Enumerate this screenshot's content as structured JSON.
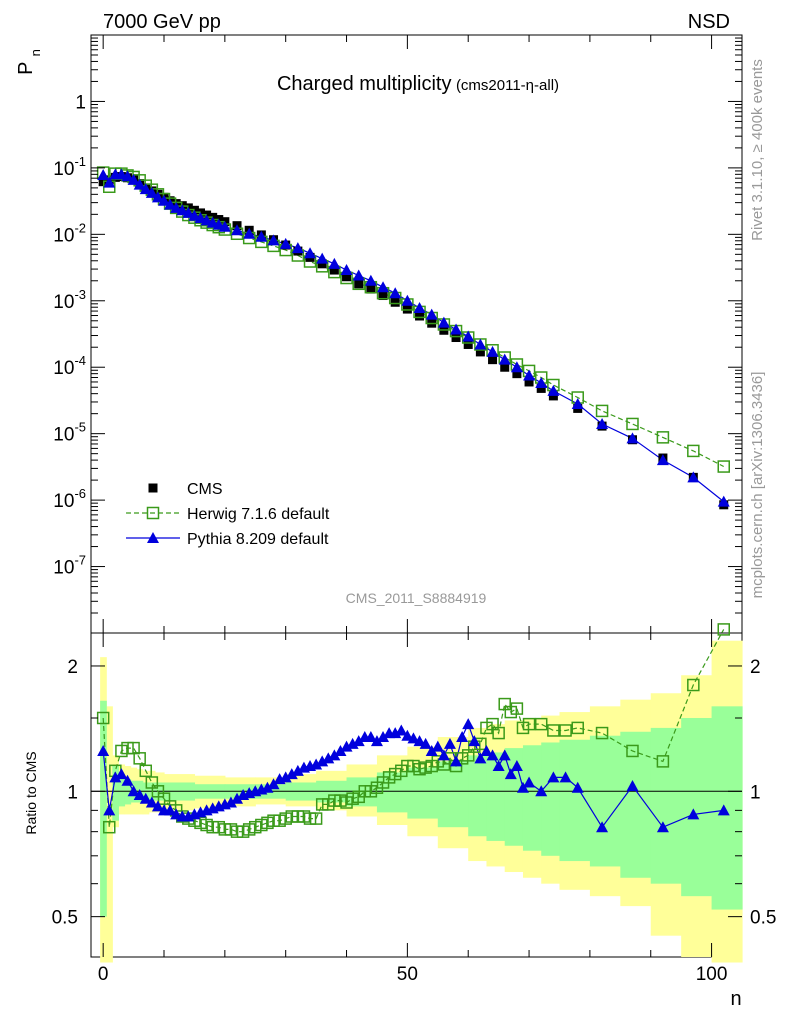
{
  "header": {
    "energy_label": "7000 GeV pp",
    "process_label": "NSD",
    "plot_title": "Charged multiplicity",
    "plot_subtitle": "(cms2011-η-all)",
    "analysis_id": "CMS_2011_S8884919",
    "side_label_top": "Rivet 3.1.10, ≥ 400k events",
    "side_label_bottom": "mcplots.cern.ch [arXiv:1306.3436]"
  },
  "colors": {
    "data": "#000000",
    "herwig": "#3a9a1a",
    "pythia": "#0000dd",
    "band_inner": "#99ff99",
    "band_outer": "#ffff99"
  },
  "chart_data": [
    {
      "type": "scatter",
      "name": "main",
      "ylabel": "P",
      "ylabel_sub": "n",
      "yscale": "log",
      "xlim": [
        -2,
        105
      ],
      "ylim": [
        1e-08,
        10
      ],
      "y_ticks": [
        {
          "value": 1e-07,
          "base": "10",
          "exp": "-7"
        },
        {
          "value": 1e-06,
          "base": "10",
          "exp": "-6"
        },
        {
          "value": 1e-05,
          "base": "10",
          "exp": "-5"
        },
        {
          "value": 0.0001,
          "base": "10",
          "exp": "-4"
        },
        {
          "value": 0.001,
          "base": "10",
          "exp": "-3"
        },
        {
          "value": 0.01,
          "base": "10",
          "exp": "-2"
        },
        {
          "value": 0.1,
          "base": "10",
          "exp": "-1"
        },
        {
          "value": 1,
          "base": "1",
          "exp": ""
        }
      ],
      "legend_position": "bottom-left",
      "series": [
        {
          "name": "CMS",
          "marker": "filled-square",
          "x": [
            0,
            1,
            2,
            3,
            4,
            5,
            6,
            7,
            8,
            9,
            10,
            11,
            12,
            13,
            14,
            15,
            16,
            17,
            18,
            19,
            20,
            22,
            24,
            26,
            28,
            30,
            32,
            34,
            36,
            38,
            40,
            42,
            44,
            46,
            48,
            50,
            52,
            54,
            56,
            58,
            60,
            62,
            64,
            66,
            68,
            70,
            72,
            74,
            78,
            82,
            87,
            92,
            97,
            102
          ],
          "y": [
            0.062,
            0.066,
            0.072,
            0.074,
            0.071,
            0.066,
            0.058,
            0.05,
            0.045,
            0.04,
            0.036,
            0.032,
            0.029,
            0.027,
            0.025,
            0.023,
            0.021,
            0.0195,
            0.018,
            0.0167,
            0.0155,
            0.0135,
            0.0115,
            0.0098,
            0.0083,
            0.0069,
            0.0056,
            0.0045,
            0.0036,
            0.0029,
            0.0023,
            0.0018,
            0.0015,
            0.0012,
            0.00095,
            0.00075,
            0.00059,
            0.00046,
            0.00036,
            0.00028,
            0.00022,
            0.00017,
            0.00013,
            0.0001,
            8e-05,
            6e-05,
            4.8e-05,
            3.7e-05,
            2.4e-05,
            1.3e-05,
            8.1e-06,
            4.3e-06,
            2.2e-06,
            8.5e-07
          ]
        },
        {
          "name": "Herwig 7.1.6 default",
          "marker": "open-square",
          "line": "dashed",
          "x": [
            0,
            1,
            2,
            3,
            4,
            5,
            6,
            7,
            8,
            9,
            10,
            11,
            12,
            13,
            14,
            15,
            16,
            17,
            18,
            19,
            20,
            22,
            24,
            26,
            28,
            30,
            32,
            34,
            36,
            38,
            40,
            42,
            44,
            46,
            48,
            50,
            52,
            54,
            56,
            58,
            60,
            62,
            64,
            66,
            68,
            70,
            72,
            74,
            78,
            82,
            87,
            92,
            97,
            102
          ],
          "y": [
            0.085,
            0.052,
            0.082,
            0.082,
            0.077,
            0.073,
            0.065,
            0.054,
            0.047,
            0.04,
            0.034,
            0.029,
            0.025,
            0.022,
            0.0195,
            0.0178,
            0.0163,
            0.015,
            0.0138,
            0.0128,
            0.0118,
            0.0102,
            0.0088,
            0.0077,
            0.0067,
            0.0058,
            0.0048,
            0.0039,
            0.0033,
            0.0027,
            0.0022,
            0.0018,
            0.0016,
            0.0013,
            0.0011,
            0.00088,
            0.00068,
            0.00055,
            0.00044,
            0.00035,
            0.00028,
            0.00022,
            0.00018,
            0.00014,
            0.00011,
            8.8e-05,
            7e-05,
            5.4e-05,
            3.5e-05,
            2.2e-05,
            1.4e-05,
            8.8e-06,
            5.5e-06,
            3.2e-06
          ]
        },
        {
          "name": "Pythia 8.209 default",
          "marker": "filled-triangle",
          "line": "solid",
          "x": [
            0,
            1,
            2,
            3,
            4,
            5,
            6,
            7,
            8,
            9,
            10,
            11,
            12,
            13,
            14,
            15,
            16,
            17,
            18,
            19,
            20,
            22,
            24,
            26,
            28,
            30,
            32,
            34,
            36,
            38,
            40,
            42,
            44,
            46,
            48,
            50,
            52,
            54,
            56,
            58,
            60,
            62,
            64,
            66,
            68,
            70,
            72,
            74,
            78,
            82,
            87,
            92,
            97,
            102
          ],
          "y": [
            0.078,
            0.06,
            0.08,
            0.08,
            0.075,
            0.066,
            0.056,
            0.048,
            0.042,
            0.036,
            0.032,
            0.028,
            0.025,
            0.023,
            0.021,
            0.019,
            0.0175,
            0.0162,
            0.015,
            0.014,
            0.013,
            0.0115,
            0.0102,
            0.0092,
            0.0081,
            0.0072,
            0.0062,
            0.0052,
            0.0043,
            0.0036,
            0.0029,
            0.0024,
            0.002,
            0.0016,
            0.0013,
            0.001,
            0.00078,
            0.00062,
            0.00047,
            0.00037,
            0.00029,
            0.00022,
            0.00017,
            0.00013,
            0.0001,
            7.5e-05,
            5.8e-05,
            4.4e-05,
            2.8e-05,
            1.4e-05,
            8.5e-06,
            4e-06,
            2.2e-06,
            9.5e-07
          ]
        }
      ]
    },
    {
      "type": "scatter",
      "name": "ratio",
      "ylabel": "Ratio to CMS",
      "xlabel": "n",
      "yscale": "log",
      "xlim": [
        -2,
        105
      ],
      "ylim": [
        0.4,
        2.4
      ],
      "x_ticks": [
        0,
        50,
        100
      ],
      "y_ticks": [
        {
          "value": 0.5,
          "label": "0.5"
        },
        {
          "value": 1,
          "label": "1"
        },
        {
          "value": 2,
          "label": "2"
        }
      ],
      "bands": {
        "x_edges": [
          -0.5,
          0.5,
          1.5,
          2.5,
          3.5,
          4.5,
          5.5,
          6.5,
          7.5,
          8.5,
          10,
          15,
          20,
          25,
          30,
          35,
          40,
          45,
          50,
          55,
          60,
          63,
          66,
          69,
          72,
          75,
          80,
          85,
          90,
          95,
          100,
          105
        ],
        "inner_low": [
          0.5,
          1.3,
          0.85,
          0.92,
          0.93,
          0.94,
          0.94,
          0.95,
          0.95,
          0.95,
          0.95,
          0.96,
          0.96,
          0.96,
          0.95,
          0.94,
          0.92,
          0.89,
          0.86,
          0.82,
          0.78,
          0.76,
          0.74,
          0.72,
          0.7,
          0.68,
          0.66,
          0.62,
          0.6,
          0.56,
          0.52
        ],
        "inner_high": [
          1.65,
          1.3,
          1.15,
          1.08,
          1.07,
          1.06,
          1.06,
          1.05,
          1.05,
          1.05,
          1.05,
          1.04,
          1.04,
          1.04,
          1.05,
          1.06,
          1.08,
          1.11,
          1.14,
          1.18,
          1.22,
          1.24,
          1.27,
          1.29,
          1.31,
          1.33,
          1.36,
          1.39,
          1.42,
          1.5,
          1.6
        ],
        "outer_low": [
          0.3,
          0.3,
          0.82,
          0.88,
          0.88,
          0.88,
          0.88,
          0.88,
          0.89,
          0.89,
          0.9,
          0.91,
          0.92,
          0.93,
          0.92,
          0.9,
          0.87,
          0.83,
          0.78,
          0.73,
          0.68,
          0.66,
          0.64,
          0.62,
          0.6,
          0.58,
          0.56,
          0.53,
          0.45,
          0.4,
          0.3
        ],
        "outer_high": [
          2.1,
          1.6,
          1.22,
          1.16,
          1.15,
          1.14,
          1.13,
          1.12,
          1.12,
          1.11,
          1.1,
          1.09,
          1.08,
          1.08,
          1.1,
          1.12,
          1.16,
          1.22,
          1.28,
          1.35,
          1.42,
          1.45,
          1.48,
          1.5,
          1.52,
          1.55,
          1.6,
          1.66,
          1.72,
          1.9,
          2.3
        ]
      },
      "series": [
        {
          "name": "Herwig 7.1.6 default",
          "marker": "open-square",
          "line": "dashed",
          "x": [
            0,
            1,
            2,
            3,
            4,
            5,
            6,
            7,
            8,
            9,
            10,
            11,
            12,
            13,
            14,
            15,
            16,
            17,
            18,
            19,
            20,
            21,
            22,
            23,
            24,
            25,
            26,
            27,
            28,
            29,
            30,
            31,
            32,
            33,
            34,
            35,
            36,
            37,
            38,
            39,
            40,
            41,
            42,
            43,
            44,
            45,
            46,
            47,
            48,
            49,
            50,
            51,
            52,
            53,
            54,
            55,
            56,
            57,
            58,
            59,
            60,
            61,
            62,
            63,
            64,
            65,
            66,
            67,
            68,
            69,
            70,
            72,
            74,
            76,
            78,
            82,
            87,
            92,
            97,
            102
          ],
          "y": [
            1.5,
            0.82,
            1.12,
            1.25,
            1.27,
            1.27,
            1.2,
            1.12,
            1.05,
            1.0,
            0.96,
            0.92,
            0.9,
            0.87,
            0.86,
            0.85,
            0.84,
            0.83,
            0.82,
            0.82,
            0.81,
            0.81,
            0.8,
            0.8,
            0.81,
            0.82,
            0.83,
            0.84,
            0.85,
            0.85,
            0.86,
            0.87,
            0.87,
            0.87,
            0.86,
            0.86,
            0.93,
            0.93,
            0.95,
            0.95,
            0.94,
            0.96,
            0.97,
            1.0,
            1.0,
            1.02,
            1.05,
            1.08,
            1.1,
            1.12,
            1.15,
            1.15,
            1.13,
            1.14,
            1.15,
            1.18,
            1.16,
            1.2,
            1.15,
            1.2,
            1.22,
            1.28,
            1.3,
            1.42,
            1.45,
            1.38,
            1.62,
            1.55,
            1.58,
            1.42,
            1.45,
            1.45,
            1.4,
            1.4,
            1.42,
            1.38,
            1.25,
            1.18,
            1.8,
            2.45
          ]
        },
        {
          "name": "Pythia 8.209 default",
          "marker": "filled-triangle",
          "line": "solid",
          "x": [
            0,
            1,
            2,
            3,
            4,
            5,
            6,
            7,
            8,
            9,
            10,
            11,
            12,
            13,
            14,
            15,
            16,
            17,
            18,
            19,
            20,
            21,
            22,
            23,
            24,
            25,
            26,
            27,
            28,
            29,
            30,
            31,
            32,
            33,
            34,
            35,
            36,
            37,
            38,
            39,
            40,
            41,
            42,
            43,
            44,
            45,
            46,
            47,
            48,
            49,
            50,
            51,
            52,
            53,
            54,
            55,
            56,
            57,
            58,
            59,
            60,
            61,
            62,
            63,
            64,
            65,
            66,
            67,
            68,
            69,
            70,
            72,
            74,
            76,
            78,
            82,
            87,
            92,
            97,
            102
          ],
          "y": [
            1.25,
            0.9,
            1.08,
            1.1,
            1.06,
            1.0,
            0.98,
            0.96,
            0.94,
            0.92,
            0.9,
            0.9,
            0.88,
            0.87,
            0.87,
            0.88,
            0.89,
            0.9,
            0.91,
            0.92,
            0.93,
            0.94,
            0.96,
            0.98,
            0.99,
            1.0,
            1.01,
            1.02,
            1.04,
            1.07,
            1.08,
            1.1,
            1.12,
            1.14,
            1.15,
            1.16,
            1.18,
            1.2,
            1.22,
            1.25,
            1.28,
            1.3,
            1.32,
            1.35,
            1.35,
            1.32,
            1.35,
            1.38,
            1.38,
            1.4,
            1.36,
            1.34,
            1.32,
            1.3,
            1.25,
            1.28,
            1.22,
            1.3,
            1.18,
            1.35,
            1.45,
            1.32,
            1.2,
            1.25,
            1.22,
            1.15,
            1.22,
            1.1,
            1.15,
            1.02,
            1.05,
            1.0,
            1.08,
            1.08,
            1.02,
            0.82,
            1.03,
            0.82,
            0.88,
            0.9
          ]
        }
      ]
    }
  ]
}
